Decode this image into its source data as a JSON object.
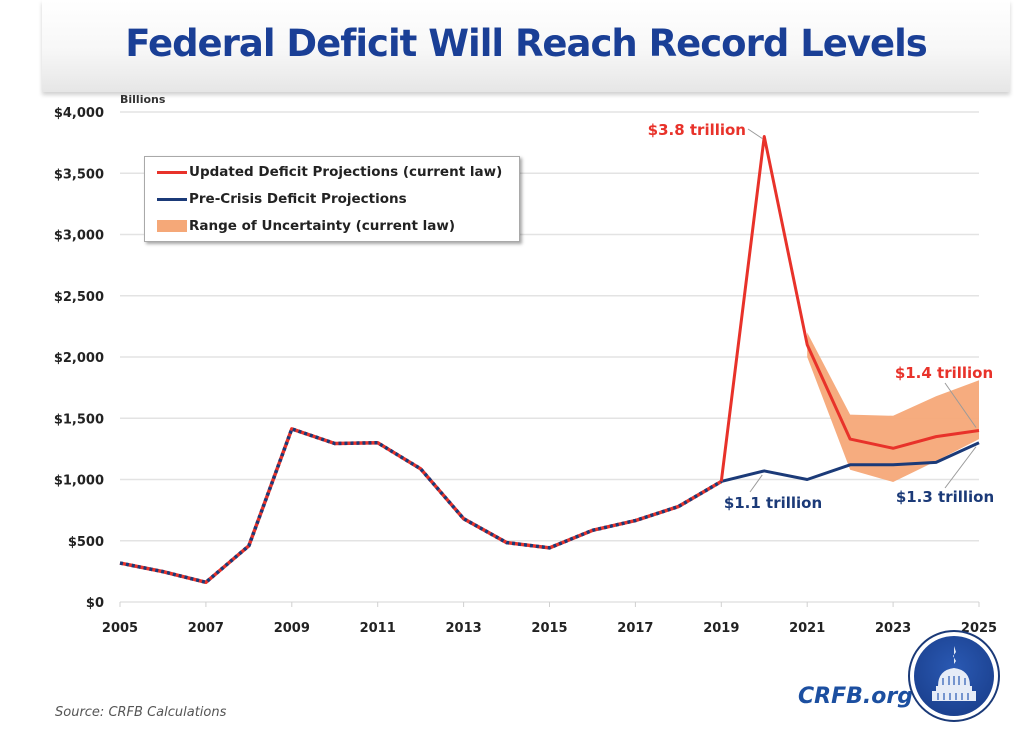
{
  "header": {
    "title": "Federal Deficit Will Reach Record Levels"
  },
  "footer": {
    "source": "Source: CRFB Calculations",
    "brand": "CRFB.org",
    "logo_icon": "capitol-dome-icon"
  },
  "colors": {
    "updated": "#e8322a",
    "precrisis": "#1b3a78",
    "range": "#f5a878",
    "title": "#1a3f96"
  },
  "chart_data": {
    "type": "line",
    "title": "Federal Deficit Will Reach Record Levels",
    "xlabel": "",
    "ylabel": "Billions",
    "ylim": [
      0,
      4000
    ],
    "xlim": [
      2005,
      2025
    ],
    "grid": true,
    "legend_position": "top-left",
    "yticks": [
      0,
      500,
      1000,
      1500,
      2000,
      2500,
      3000,
      3500,
      4000
    ],
    "ytick_labels": [
      "$0",
      "$500",
      "$1,000",
      "$1,500",
      "$2,000",
      "$2,500",
      "$3,000",
      "$3,500",
      "$4,000"
    ],
    "xticks": [
      2005,
      2007,
      2009,
      2011,
      2013,
      2015,
      2017,
      2019,
      2021,
      2023,
      2025
    ],
    "xtick_labels": [
      "2005",
      "2007",
      "2009",
      "2011",
      "2013",
      "2015",
      "2017",
      "2019",
      "2021",
      "2023",
      "2025"
    ],
    "historical": {
      "x": [
        2005,
        2006,
        2007,
        2008,
        2009,
        2010,
        2011,
        2012,
        2013,
        2014,
        2015,
        2016,
        2017,
        2018,
        2019
      ],
      "values": [
        318,
        248,
        161,
        459,
        1413,
        1294,
        1300,
        1087,
        680,
        485,
        442,
        585,
        665,
        779,
        984
      ]
    },
    "series": [
      {
        "name": "Updated Deficit Projections (current law)",
        "x": [
          2019,
          2020,
          2021,
          2022,
          2023,
          2024,
          2025
        ],
        "values": [
          984,
          3800,
          2100,
          1330,
          1255,
          1350,
          1400
        ]
      },
      {
        "name": "Pre-Crisis Deficit Projections",
        "x": [
          2019,
          2020,
          2021,
          2022,
          2023,
          2024,
          2025
        ],
        "values": [
          984,
          1070,
          1000,
          1120,
          1120,
          1140,
          1300
        ]
      }
    ],
    "range": {
      "name": "Range of Uncertainty (current law)",
      "x": [
        2021,
        2022,
        2023,
        2024,
        2025
      ],
      "upper": [
        2200,
        1530,
        1520,
        1680,
        1810
      ],
      "lower": [
        2000,
        1080,
        980,
        1150,
        1330
      ]
    },
    "legend": [
      "Updated Deficit Projections (current law)",
      "Pre-Crisis Deficit Projections",
      "Range of Uncertainty (current law)"
    ],
    "annotations": [
      {
        "text": "$3.8 trillion",
        "x": 2020,
        "y": 3800,
        "series": "updated"
      },
      {
        "text": "$1.1 trillion",
        "x": 2020,
        "y": 1070,
        "series": "precrisis"
      },
      {
        "text": "$1.4 trillion",
        "x": 2025,
        "y": 1400,
        "series": "updated"
      },
      {
        "text": "$1.3 trillion",
        "x": 2025,
        "y": 1300,
        "series": "precrisis"
      }
    ]
  }
}
